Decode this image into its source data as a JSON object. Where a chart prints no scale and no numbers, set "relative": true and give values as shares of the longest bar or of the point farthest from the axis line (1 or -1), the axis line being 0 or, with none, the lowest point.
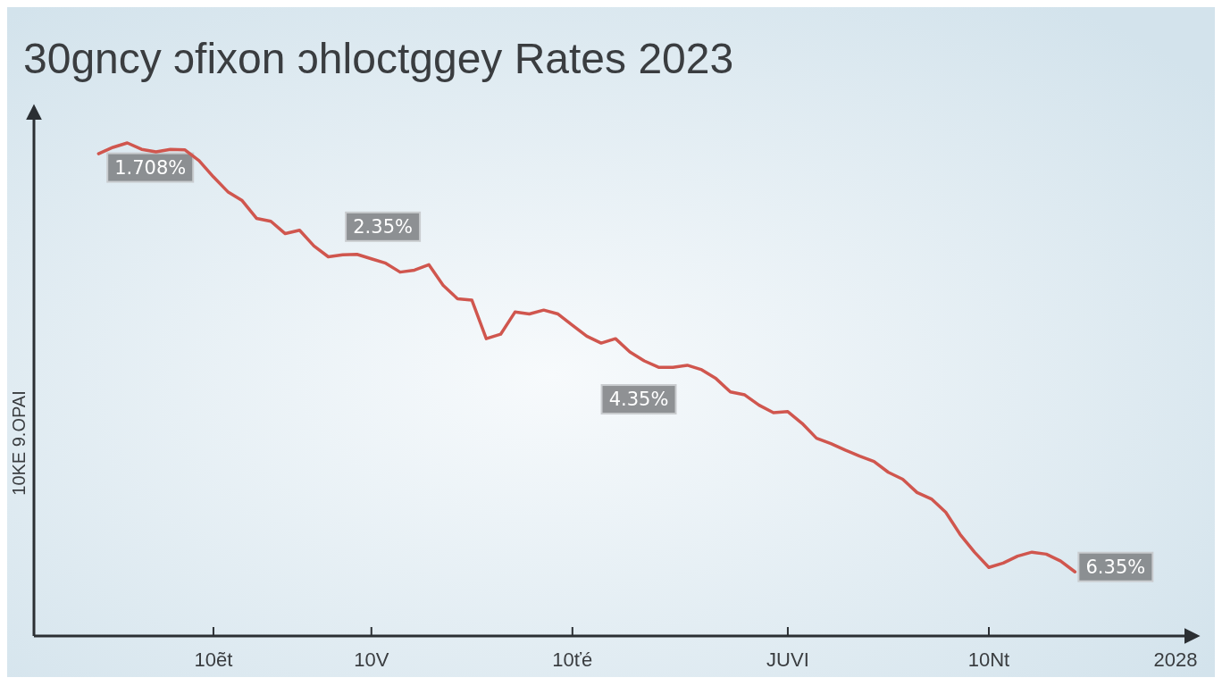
{
  "chart_data": {
    "type": "line",
    "title": "30gncy ɔfixon ɔhloctggey Rates 2023",
    "ylabel": "10KE 9.OPAI",
    "relative": true,
    "marker": "none",
    "line_style": "solid",
    "categories": [
      null,
      null,
      null,
      null,
      null,
      null,
      null,
      null,
      null,
      null,
      null,
      null,
      "10ẽt",
      null,
      null,
      null,
      null,
      null,
      null,
      null,
      null,
      null,
      null,
      "10V",
      null,
      null,
      null,
      null,
      null,
      null,
      null,
      null,
      null,
      null,
      null,
      null,
      null,
      "10ťé",
      null,
      null,
      null,
      null,
      null,
      null,
      null,
      null,
      null,
      null,
      null,
      null,
      null,
      null,
      "JUVI",
      null,
      null,
      null,
      null,
      null,
      null,
      null,
      null,
      null,
      null,
      null,
      null,
      null,
      "10Nt",
      null,
      null,
      null,
      null,
      null,
      null,
      null,
      null,
      null,
      null,
      null,
      null,
      "2028"
    ],
    "annotations": [
      "1.708%",
      "2.35%",
      "4.35%",
      "6.35%"
    ],
    "series": [
      {
        "color": "#d0564e",
        "values": [
          null,
          null,
          null,
          null,
          0.978,
          0.991,
          1,
          0.987,
          0.982,
          0.987,
          0.986,
          0.964,
          0.931,
          0.901,
          0.883,
          0.847,
          0.841,
          0.816,
          0.823,
          0.791,
          0.769,
          0.773,
          0.774,
          0.765,
          0.756,
          0.738,
          0.742,
          0.753,
          0.711,
          0.684,
          0.681,
          0.603,
          0.612,
          0.657,
          0.653,
          0.661,
          0.653,
          0.63,
          0.608,
          0.594,
          0.603,
          0.576,
          0.558,
          0.545,
          0.545,
          0.549,
          0.54,
          0.522,
          0.495,
          0.489,
          0.468,
          0.453,
          0.455,
          0.431,
          0.401,
          0.39,
          0.377,
          0.365,
          0.354,
          0.332,
          0.318,
          0.291,
          0.278,
          0.251,
          0.206,
          0.17,
          0.139,
          0.148,
          0.162,
          0.17,
          0.166,
          0.152,
          0.13,
          null,
          null,
          null,
          null,
          null,
          null,
          null
        ]
      }
    ]
  }
}
